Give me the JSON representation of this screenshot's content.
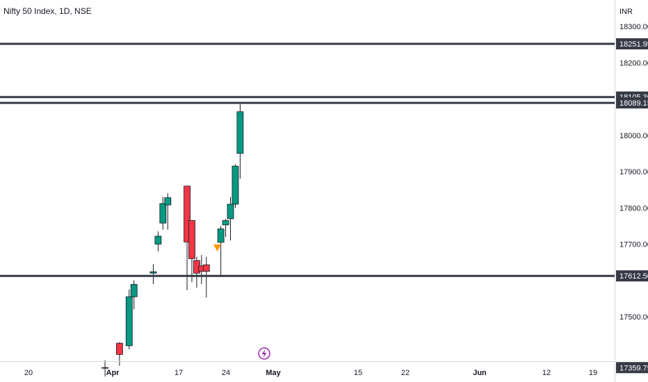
{
  "title": "Nifty 50 Index, 1D, NSE",
  "currency": "INR",
  "colors": {
    "up": "#089981",
    "down": "#f23645",
    "level": "#363a45",
    "label_bg": "#363a45",
    "label_text": "#ffffff",
    "marker": "#ff9800",
    "lightning": "#9c27b0",
    "axis_text": "#131722"
  },
  "chart_data": {
    "type": "candlestick",
    "title": "Nifty 50 Index, 1D, NSE",
    "y_axis_unit": "INR",
    "ylim": [
      17335,
      18420
    ],
    "y_ticks": [
      17500,
      17700,
      17800,
      17900,
      18000,
      18200,
      18300
    ],
    "y_tick_labels": [
      "17500.00",
      "17700.00",
      "17800.00",
      "17900.00",
      "18000.00",
      "18200.00",
      "18300.00"
    ],
    "x_labels": [
      "20",
      "Apr",
      "17",
      "24",
      "May",
      "15",
      "22",
      "Jun",
      "12",
      "19"
    ],
    "levels": [
      {
        "value": 18251.95,
        "label": "18251.95"
      },
      {
        "value": 18105.3,
        "label": "18105.30"
      },
      {
        "value": 18089.15,
        "label": "18089.15"
      },
      {
        "value": 17612.5,
        "label": "17612.50"
      }
    ],
    "last_price_label": "17359.75",
    "candles": [
      {
        "date": "2023-03-31",
        "open": 17360,
        "high": 17380,
        "low": 17335,
        "close": 17358
      },
      {
        "date": "2023-04-03",
        "open": 17427,
        "high": 17430,
        "low": 17365,
        "close": 17396
      },
      {
        "date": "2023-04-05",
        "open": 17420,
        "high": 17575,
        "low": 17410,
        "close": 17555
      },
      {
        "date": "2023-04-06",
        "open": 17555,
        "high": 17600,
        "low": 17520,
        "close": 17589
      },
      {
        "date": "2023-04-10",
        "open": 17620,
        "high": 17645,
        "low": 17590,
        "close": 17624
      },
      {
        "date": "2023-04-11",
        "open": 17700,
        "high": 17735,
        "low": 17680,
        "close": 17722
      },
      {
        "date": "2023-04-12",
        "open": 17758,
        "high": 17830,
        "low": 17740,
        "close": 17812
      },
      {
        "date": "2023-04-13",
        "open": 17808,
        "high": 17840,
        "low": 17740,
        "close": 17828
      },
      {
        "date": "2023-04-17",
        "open": 17860,
        "high": 17860,
        "low": 17573,
        "close": 17706
      },
      {
        "date": "2023-04-18",
        "open": 17765,
        "high": 17765,
        "low": 17595,
        "close": 17660
      },
      {
        "date": "2023-04-19",
        "open": 17655,
        "high": 17665,
        "low": 17580,
        "close": 17620
      },
      {
        "date": "2023-04-20",
        "open": 17640,
        "high": 17670,
        "low": 17590,
        "close": 17625
      },
      {
        "date": "2023-04-21",
        "open": 17643,
        "high": 17665,
        "low": 17553,
        "close": 17625
      },
      {
        "date": "2023-04-24",
        "open": 17705,
        "high": 17750,
        "low": 17610,
        "close": 17742
      },
      {
        "date": "2023-04-25",
        "open": 17753,
        "high": 17770,
        "low": 17720,
        "close": 17765
      },
      {
        "date": "2023-04-26",
        "open": 17770,
        "high": 17830,
        "low": 17710,
        "close": 17810
      },
      {
        "date": "2023-04-27",
        "open": 17810,
        "high": 17920,
        "low": 17800,
        "close": 17915
      },
      {
        "date": "2023-04-28",
        "open": 17950,
        "high": 18090,
        "low": 17880,
        "close": 18065
      }
    ]
  }
}
